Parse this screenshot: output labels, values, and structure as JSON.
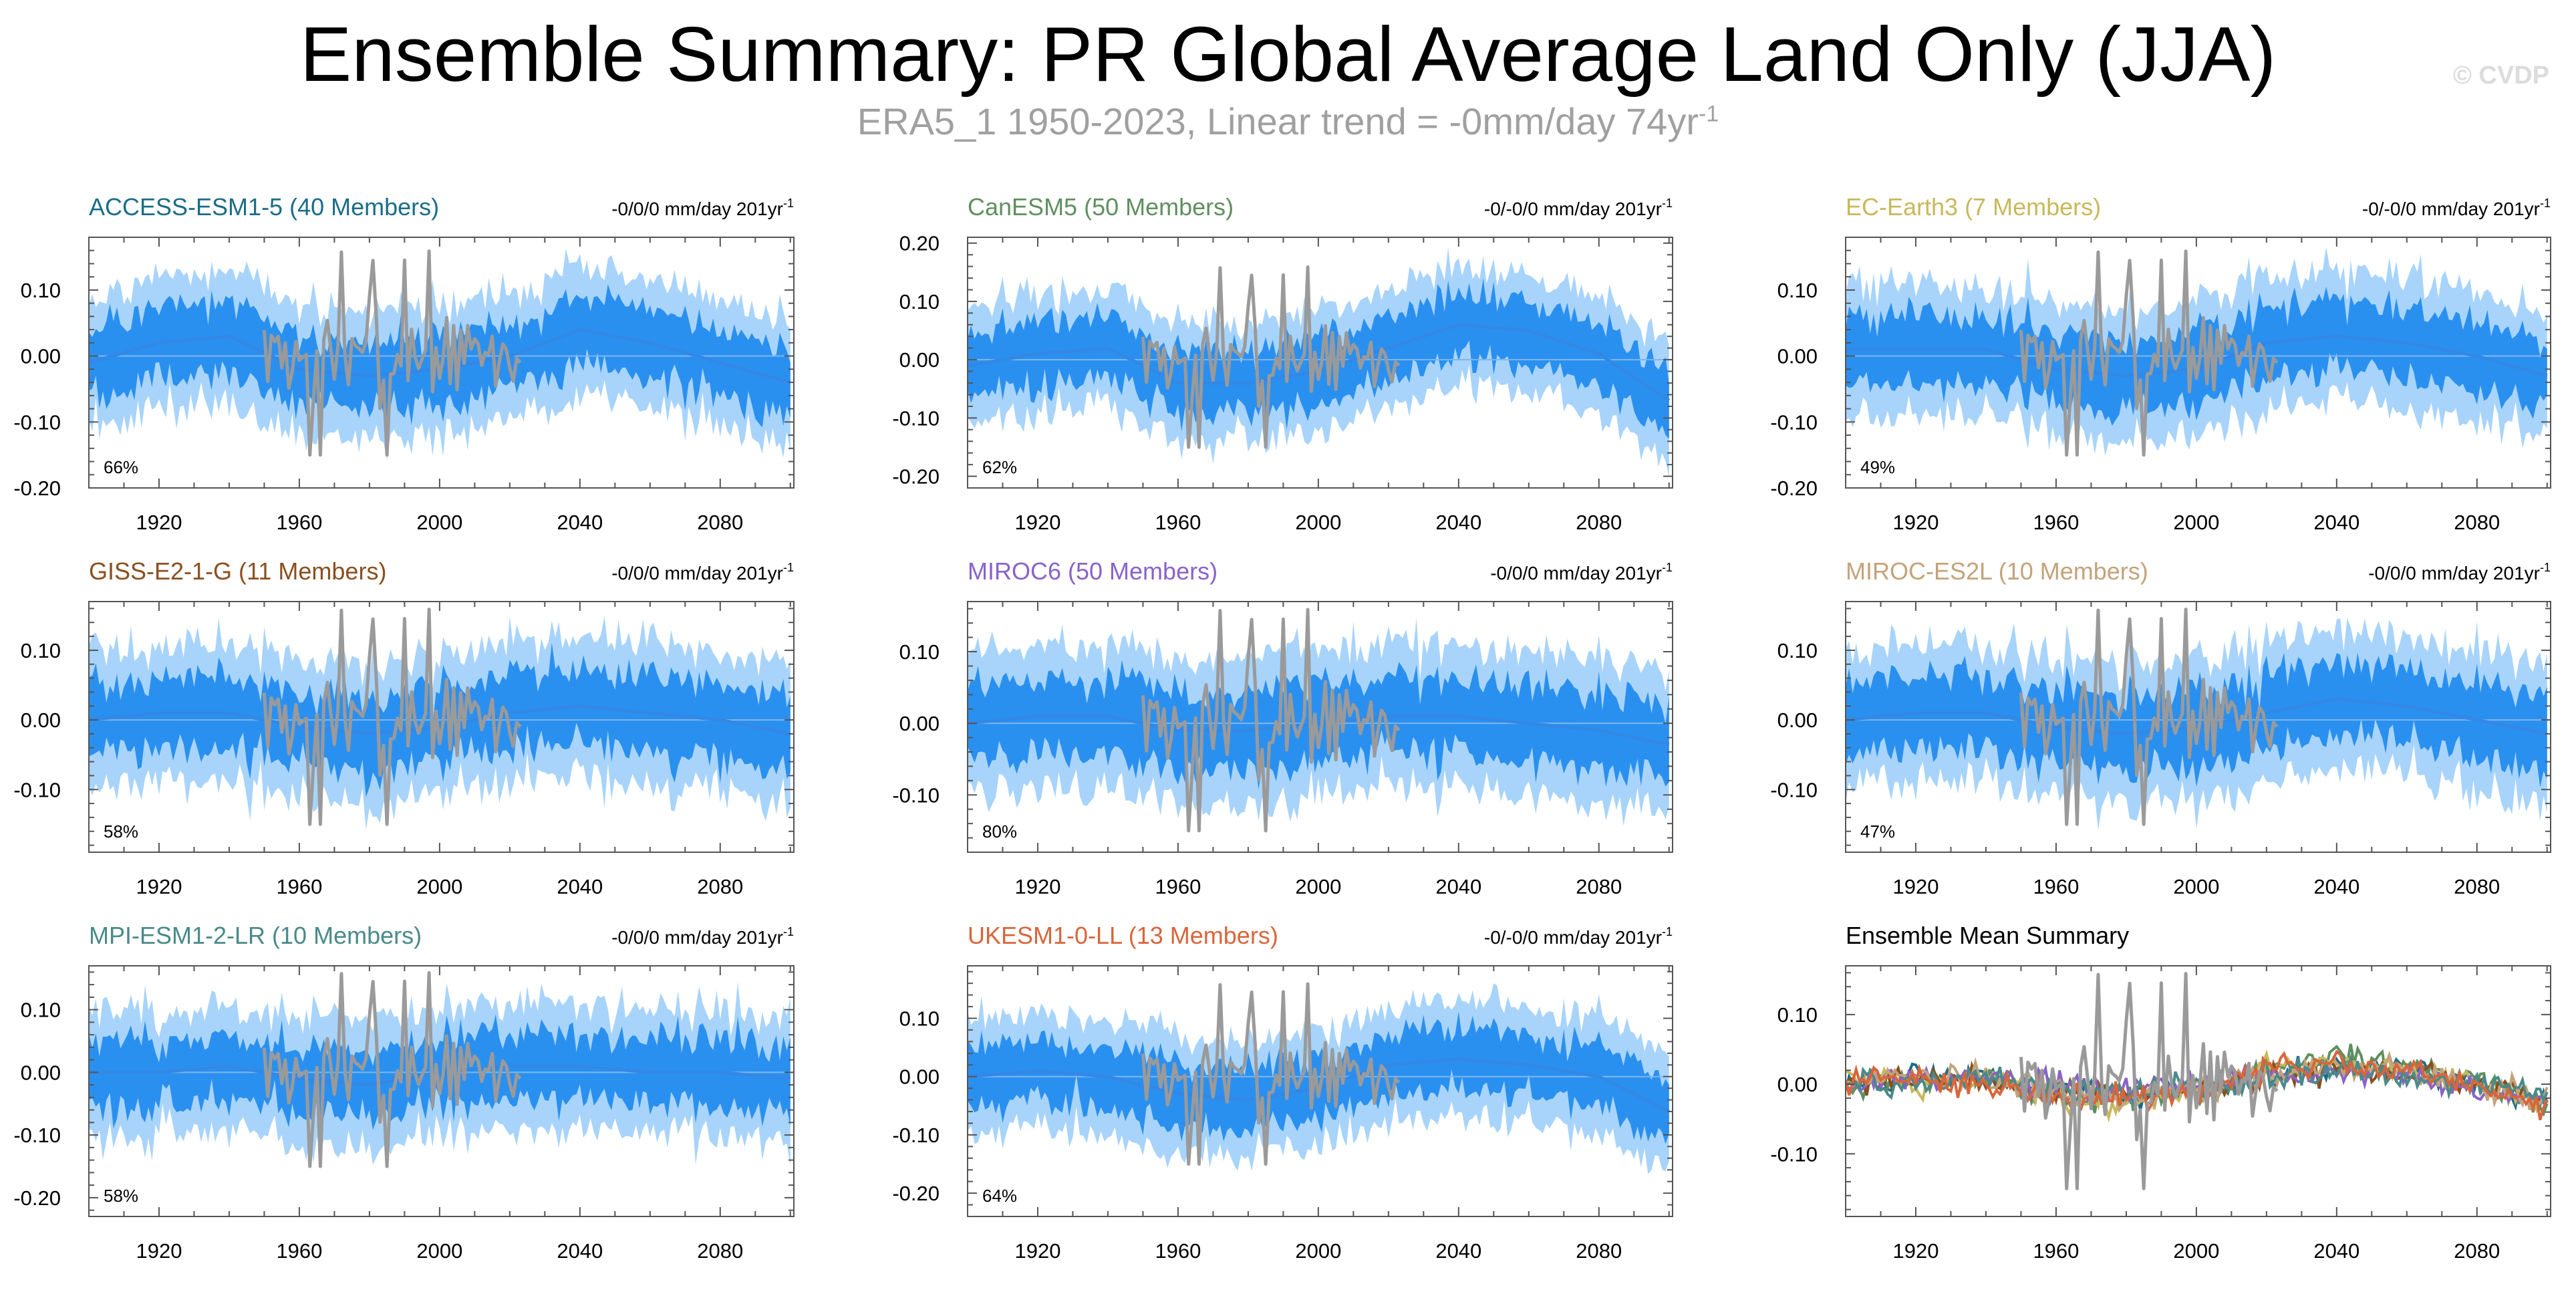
{
  "title": "Ensemble Summary: PR Global Average Land Only (JJA)",
  "subtitle": {
    "text": "ERA5_1 1950-2023, Linear trend = -0mm/day 74yr",
    "superscript": "-1"
  },
  "credit": "© CVDP",
  "colors": {
    "observation": "#9a9a9a",
    "ensemble_mean": "#3388e6",
    "band_inner": "#2a90f0",
    "band_outer": "#a8d4fb"
  },
  "chart_data": [
    {
      "type": "line",
      "panel": "ACCESS-ESM1-5",
      "title": "ACCESS-ESM1-5 (40 Members)",
      "title_color": "#1a6d88",
      "trend_label": "-0/0/0 mm/day 201yr",
      "trend_superscript": "-1",
      "percent_label": "66%",
      "xlim": [
        1900,
        2101
      ],
      "ylim": [
        -0.2,
        0.18
      ],
      "xticks": [
        1920,
        1960,
        2000,
        2040,
        2080
      ],
      "xtick_labels": [
        "1920",
        "1960",
        "2000",
        "2040",
        "2080"
      ],
      "yticks": [
        -0.2,
        -0.1,
        0.0,
        0.1
      ],
      "ytick_labels": [
        "-0.20",
        "-0.10",
        "0.00",
        "0.10"
      ],
      "series": [
        {
          "name": "ensemble mean",
          "x": [
            1900,
            1920,
            1940,
            1960,
            1980,
            2000,
            2020,
            2040,
            2060,
            2080,
            2100
          ],
          "y": [
            -0.01,
            0.02,
            0.03,
            -0.02,
            -0.03,
            -0.02,
            0.0,
            0.04,
            0.02,
            -0.01,
            -0.04
          ]
        }
      ]
    },
    {
      "type": "line",
      "panel": "CanESM5",
      "title": "CanESM5 (50 Members)",
      "title_color": "#5f8f5f",
      "trend_label": "-0/-0/0 mm/day 201yr",
      "trend_superscript": "-1",
      "percent_label": "62%",
      "xlim": [
        1900,
        2101
      ],
      "ylim": [
        -0.22,
        0.21
      ],
      "xticks": [
        1920,
        1960,
        2000,
        2040,
        2080
      ],
      "xtick_labels": [
        "1920",
        "1960",
        "2000",
        "2040",
        "2080"
      ],
      "yticks": [
        -0.2,
        -0.1,
        0.0,
        0.1,
        0.2
      ],
      "ytick_labels": [
        "-0.20",
        "-0.10",
        "0.00",
        "0.10",
        "0.20"
      ],
      "series": [
        {
          "name": "ensemble mean",
          "x": [
            1900,
            1920,
            1940,
            1960,
            1980,
            2000,
            2020,
            2040,
            2060,
            2080,
            2100
          ],
          "y": [
            -0.01,
            0.01,
            0.02,
            -0.04,
            -0.04,
            -0.02,
            0.02,
            0.06,
            0.05,
            0.01,
            -0.07
          ]
        }
      ]
    },
    {
      "type": "line",
      "panel": "EC-Earth3",
      "title": "EC-Earth3 (7 Members)",
      "title_color": "#c9b85c",
      "trend_label": "-0/-0/0 mm/day 201yr",
      "trend_superscript": "-1",
      "percent_label": "49%",
      "xlim": [
        1900,
        2101
      ],
      "ylim": [
        -0.2,
        0.18
      ],
      "xticks": [
        1920,
        1960,
        2000,
        2040,
        2080
      ],
      "xtick_labels": [
        "1920",
        "1960",
        "2000",
        "2040",
        "2080"
      ],
      "yticks": [
        -0.2,
        -0.1,
        0.0,
        0.1
      ],
      "ytick_labels": [
        "-0.20",
        "-0.10",
        "0.00",
        "0.10"
      ],
      "series": [
        {
          "name": "ensemble mean",
          "x": [
            1900,
            1920,
            1940,
            1960,
            1980,
            2000,
            2020,
            2040,
            2060,
            2080,
            2100
          ],
          "y": [
            0.01,
            0.01,
            0.01,
            -0.02,
            -0.03,
            -0.02,
            0.02,
            0.03,
            0.02,
            0.0,
            -0.03
          ]
        }
      ]
    },
    {
      "type": "line",
      "panel": "GISS-E2-1-G",
      "title": "GISS-E2-1-G (11 Members)",
      "title_color": "#8a4f1f",
      "trend_label": "-0/0/0 mm/day 201yr",
      "trend_superscript": "-1",
      "percent_label": "58%",
      "xlim": [
        1900,
        2101
      ],
      "ylim": [
        -0.19,
        0.17
      ],
      "xticks": [
        1920,
        1960,
        2000,
        2040,
        2080
      ],
      "xtick_labels": [
        "1920",
        "1960",
        "2000",
        "2040",
        "2080"
      ],
      "yticks": [
        -0.1,
        0.0,
        0.1
      ],
      "ytick_labels": [
        "-0.10",
        "0.00",
        "0.10"
      ],
      "series": [
        {
          "name": "ensemble mean",
          "x": [
            1900,
            1920,
            1940,
            1960,
            1980,
            2000,
            2020,
            2040,
            2060,
            2080,
            2100
          ],
          "y": [
            0.0,
            0.01,
            0.01,
            -0.01,
            -0.02,
            -0.01,
            0.01,
            0.02,
            0.01,
            0.0,
            -0.02
          ]
        }
      ]
    },
    {
      "type": "line",
      "panel": "MIROC6",
      "title": "MIROC6 (50 Members)",
      "title_color": "#8a62c9",
      "trend_label": "-0/0/0 mm/day 201yr",
      "trend_superscript": "-1",
      "percent_label": "80%",
      "xlim": [
        1900,
        2101
      ],
      "ylim": [
        -0.18,
        0.17
      ],
      "xticks": [
        1920,
        1960,
        2000,
        2040,
        2080
      ],
      "xtick_labels": [
        "1920",
        "1960",
        "2000",
        "2040",
        "2080"
      ],
      "yticks": [
        -0.1,
        0.0,
        0.1
      ],
      "ytick_labels": [
        "-0.10",
        "0.00",
        "0.10"
      ],
      "series": [
        {
          "name": "ensemble mean",
          "x": [
            1900,
            1920,
            1940,
            1960,
            1980,
            2000,
            2020,
            2040,
            2060,
            2080,
            2100
          ],
          "y": [
            0.0,
            0.01,
            0.01,
            -0.01,
            -0.01,
            0.0,
            0.01,
            0.01,
            0.0,
            -0.01,
            -0.03
          ]
        }
      ]
    },
    {
      "type": "line",
      "panel": "MIROC-ES2L",
      "title": "MIROC-ES2L (10 Members)",
      "title_color": "#c4a37a",
      "trend_label": "-0/0/0 mm/day 201yr",
      "trend_superscript": "-1",
      "percent_label": "47%",
      "xlim": [
        1900,
        2101
      ],
      "ylim": [
        -0.19,
        0.17
      ],
      "xticks": [
        1920,
        1960,
        2000,
        2040,
        2080
      ],
      "xtick_labels": [
        "1920",
        "1960",
        "2000",
        "2040",
        "2080"
      ],
      "yticks": [
        -0.1,
        0.0,
        0.1
      ],
      "ytick_labels": [
        "-0.10",
        "0.00",
        "0.10"
      ],
      "series": [
        {
          "name": "ensemble mean",
          "x": [
            1900,
            1920,
            1940,
            1960,
            1980,
            2000,
            2020,
            2040,
            2060,
            2080,
            2100
          ],
          "y": [
            0.0,
            0.01,
            0.01,
            -0.01,
            -0.02,
            -0.01,
            0.01,
            0.03,
            0.02,
            0.0,
            -0.02
          ]
        }
      ]
    },
    {
      "type": "line",
      "panel": "MPI-ESM1-2-LR",
      "title": "MPI-ESM1-2-LR (10 Members)",
      "title_color": "#4a8a8a",
      "trend_label": "-0/0/0 mm/day 201yr",
      "trend_superscript": "-1",
      "percent_label": "58%",
      "xlim": [
        1900,
        2101
      ],
      "ylim": [
        -0.23,
        0.17
      ],
      "xticks": [
        1920,
        1960,
        2000,
        2040,
        2080
      ],
      "xtick_labels": [
        "1920",
        "1960",
        "2000",
        "2040",
        "2080"
      ],
      "yticks": [
        -0.2,
        -0.1,
        0.0,
        0.1
      ],
      "ytick_labels": [
        "-0.20",
        "-0.10",
        "0.00",
        "0.10"
      ],
      "series": [
        {
          "name": "ensemble mean",
          "x": [
            1900,
            1920,
            1940,
            1960,
            1980,
            2000,
            2020,
            2040,
            2060,
            2080,
            2100
          ],
          "y": [
            0.0,
            0.0,
            0.01,
            -0.01,
            -0.02,
            0.0,
            0.01,
            0.01,
            0.0,
            0.0,
            -0.01
          ]
        }
      ]
    },
    {
      "type": "line",
      "panel": "UKESM1-0-LL",
      "title": "UKESM1-0-LL (13 Members)",
      "title_color": "#d9653b",
      "trend_label": "-0/-0/0 mm/day 201yr",
      "trend_superscript": "-1",
      "percent_label": "64%",
      "xlim": [
        1900,
        2101
      ],
      "ylim": [
        -0.24,
        0.19
      ],
      "xticks": [
        1920,
        1960,
        2000,
        2040,
        2080
      ],
      "xtick_labels": [
        "1920",
        "1960",
        "2000",
        "2040",
        "2080"
      ],
      "yticks": [
        -0.2,
        -0.1,
        0.0,
        0.1
      ],
      "ytick_labels": [
        "-0.20",
        "-0.10",
        "0.00",
        "0.10"
      ],
      "series": [
        {
          "name": "ensemble mean",
          "x": [
            1900,
            1920,
            1940,
            1960,
            1980,
            2000,
            2020,
            2040,
            2060,
            2080,
            2100
          ],
          "y": [
            0.0,
            0.01,
            0.0,
            -0.03,
            -0.04,
            -0.02,
            0.02,
            0.03,
            0.02,
            0.0,
            -0.06
          ]
        }
      ]
    },
    {
      "type": "line",
      "panel": "Ensemble Mean Summary",
      "title": "Ensemble Mean Summary",
      "title_color": "#000000",
      "trend_label": "",
      "trend_superscript": "",
      "percent_label": "",
      "xlim": [
        1900,
        2101
      ],
      "ylim": [
        -0.19,
        0.17
      ],
      "xticks": [
        1920,
        1960,
        2000,
        2040,
        2080
      ],
      "xtick_labels": [
        "1920",
        "1960",
        "2000",
        "2040",
        "2080"
      ],
      "yticks": [
        -0.1,
        0.0,
        0.1
      ],
      "ytick_labels": [
        "-0.10",
        "0.00",
        "0.10"
      ],
      "series": [
        {
          "color": "#1a6d88",
          "x": [
            1900,
            1920,
            1940,
            1960,
            1980,
            2000,
            2020,
            2040,
            2060,
            2080,
            2100
          ],
          "y": [
            0.0,
            0.01,
            0.01,
            -0.01,
            -0.02,
            -0.01,
            0.01,
            0.03,
            0.02,
            0.0,
            -0.03
          ]
        },
        {
          "color": "#5f8f5f",
          "x": [
            1900,
            1920,
            1940,
            1960,
            1980,
            2000,
            2020,
            2040,
            2060,
            2080,
            2100
          ],
          "y": [
            0.0,
            0.01,
            0.01,
            -0.02,
            -0.02,
            -0.01,
            0.02,
            0.04,
            0.03,
            0.01,
            -0.04
          ]
        },
        {
          "color": "#c9b85c",
          "x": [
            1900,
            1920,
            1940,
            1960,
            1980,
            2000,
            2020,
            2040,
            2060,
            2080,
            2100
          ],
          "y": [
            0.01,
            0.0,
            0.01,
            -0.02,
            -0.03,
            -0.01,
            0.02,
            0.03,
            0.02,
            0.0,
            -0.03
          ]
        },
        {
          "color": "#8a4f1f",
          "x": [
            1900,
            1920,
            1940,
            1960,
            1980,
            2000,
            2020,
            2040,
            2060,
            2080,
            2100
          ],
          "y": [
            0.0,
            0.01,
            0.0,
            -0.01,
            -0.01,
            -0.01,
            0.01,
            0.02,
            0.01,
            0.0,
            -0.02
          ]
        },
        {
          "color": "#8a62c9",
          "x": [
            1900,
            1920,
            1940,
            1960,
            1980,
            2000,
            2020,
            2040,
            2060,
            2080,
            2100
          ],
          "y": [
            0.0,
            0.01,
            0.01,
            0.0,
            -0.01,
            0.0,
            0.01,
            0.02,
            0.01,
            -0.01,
            -0.02
          ]
        },
        {
          "color": "#c4a37a",
          "x": [
            1900,
            1920,
            1940,
            1960,
            1980,
            2000,
            2020,
            2040,
            2060,
            2080,
            2100
          ],
          "y": [
            0.0,
            0.01,
            0.01,
            -0.01,
            -0.02,
            -0.01,
            0.01,
            0.03,
            0.02,
            0.0,
            -0.02
          ]
        },
        {
          "color": "#4a8a8a",
          "x": [
            1900,
            1920,
            1940,
            1960,
            1980,
            2000,
            2020,
            2040,
            2060,
            2080,
            2100
          ],
          "y": [
            0.0,
            0.0,
            0.01,
            -0.01,
            -0.01,
            0.0,
            0.01,
            0.02,
            0.01,
            0.0,
            -0.02
          ]
        },
        {
          "color": "#d9653b",
          "x": [
            1900,
            1920,
            1940,
            1960,
            1980,
            2000,
            2020,
            2040,
            2060,
            2080,
            2100
          ],
          "y": [
            0.0,
            0.01,
            0.0,
            -0.02,
            -0.02,
            -0.01,
            0.02,
            0.03,
            0.02,
            0.0,
            -0.04
          ]
        }
      ]
    }
  ]
}
